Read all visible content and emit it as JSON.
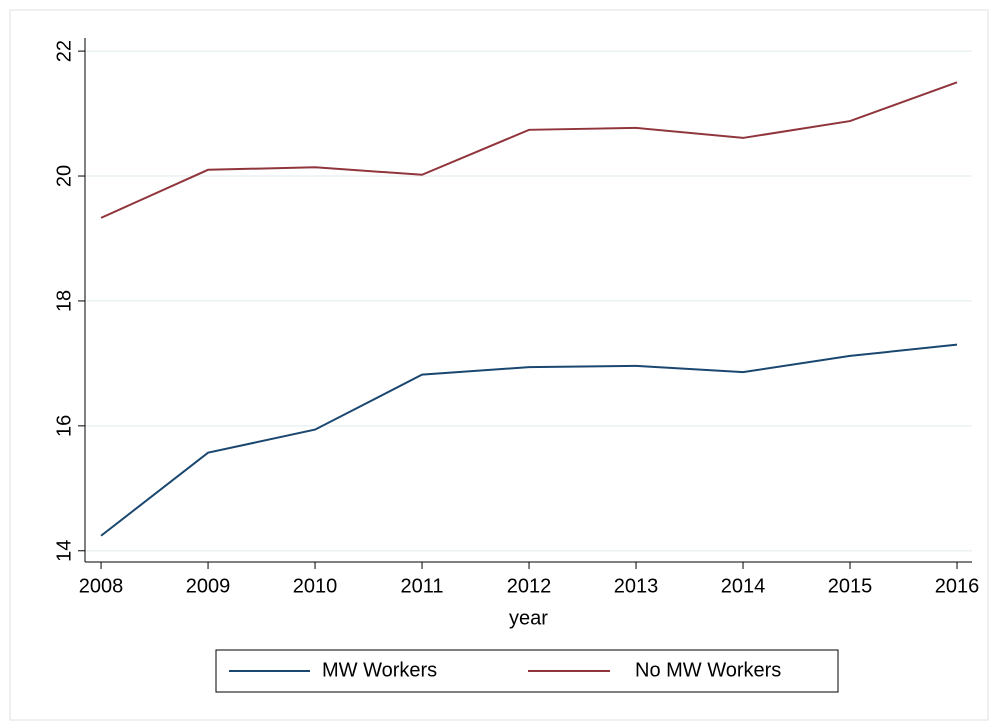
{
  "chart_data": {
    "type": "line",
    "x": [
      2008,
      2009,
      2010,
      2011,
      2012,
      2013,
      2014,
      2015,
      2016
    ],
    "x_label": "year",
    "series": [
      {
        "name": "MW Workers",
        "color": "#1a476f",
        "values": [
          14.24,
          15.57,
          15.94,
          16.82,
          16.94,
          16.96,
          16.86,
          17.12,
          17.3
        ]
      },
      {
        "name": "No MW Workers",
        "color": "#90353b",
        "values": [
          19.33,
          20.1,
          20.14,
          20.02,
          20.74,
          20.77,
          20.61,
          20.88,
          21.5
        ]
      }
    ],
    "xlim": [
      2007.85,
      2016.14
    ],
    "xticks": [
      2008,
      2009,
      2010,
      2011,
      2012,
      2013,
      2014,
      2015,
      2016
    ],
    "ylim": [
      13.82,
      22.21
    ],
    "yticks": [
      14,
      16,
      18,
      20,
      22
    ],
    "grid": true,
    "legend": "bottom"
  }
}
